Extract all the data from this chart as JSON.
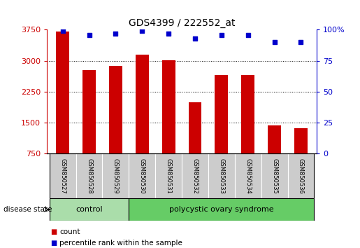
{
  "title": "GDS4399 / 222552_at",
  "samples": [
    "GSM850527",
    "GSM850528",
    "GSM850529",
    "GSM850530",
    "GSM850531",
    "GSM850532",
    "GSM850533",
    "GSM850534",
    "GSM850535",
    "GSM850536"
  ],
  "counts": [
    3700,
    2780,
    2870,
    3150,
    3010,
    2000,
    2650,
    2660,
    1430,
    1370
  ],
  "percentiles": [
    99,
    96,
    97,
    99,
    97,
    93,
    96,
    96,
    90,
    90
  ],
  "ylim_left": [
    750,
    3750
  ],
  "ylim_right": [
    0,
    100
  ],
  "yticks_left": [
    750,
    1500,
    2250,
    3000,
    3750
  ],
  "yticks_right": [
    0,
    25,
    50,
    75,
    100
  ],
  "bar_color": "#CC0000",
  "dot_color": "#0000CC",
  "grid_color": "#000000",
  "control_color": "#aaddaa",
  "pcos_color": "#66cc66",
  "tick_bg_color": "#cccccc",
  "n_control": 3,
  "n_pcos": 7,
  "disease_state_label": "disease state",
  "control_label": "control",
  "pcos_label": "polycystic ovary syndrome",
  "legend_count": "count",
  "legend_percentile": "percentile rank within the sample"
}
